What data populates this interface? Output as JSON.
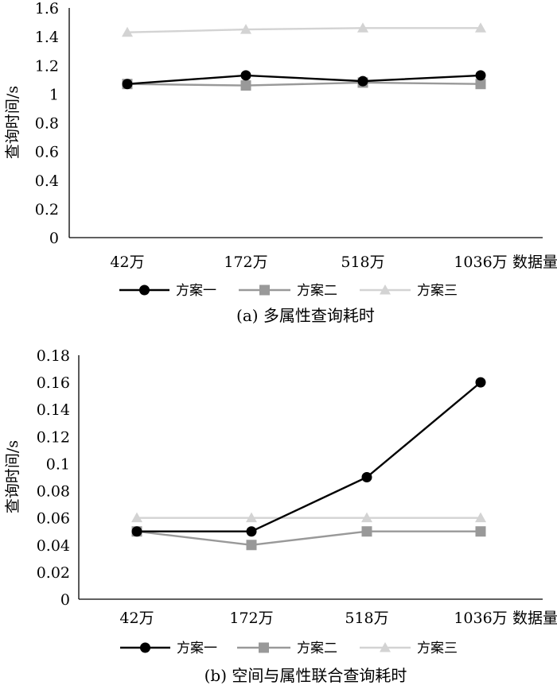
{
  "colors": {
    "series_1": "#000000",
    "series_2": "#999999",
    "series_3": "#d3d3d3",
    "axis": "#000000"
  },
  "chart_data": [
    {
      "type": "line",
      "caption": "(a) 多属性查询耗时",
      "xlabel": "数据量",
      "ylabel": "查询时间/s",
      "categories": [
        "42万",
        "172万",
        "518万",
        "1036万"
      ],
      "ylim": [
        0,
        1.6
      ],
      "yticks": [
        "0",
        "0.2",
        "0.4",
        "0.6",
        "0.8",
        "1",
        "1.2",
        "1.4",
        "1.6"
      ],
      "grid": false,
      "legend_position": "bottom",
      "series": [
        {
          "name": "方案一",
          "marker": "circle",
          "values": [
            1.07,
            1.13,
            1.09,
            1.13
          ]
        },
        {
          "name": "方案二",
          "marker": "square",
          "values": [
            1.07,
            1.06,
            1.08,
            1.07
          ]
        },
        {
          "name": "方案三",
          "marker": "triangle",
          "values": [
            1.43,
            1.45,
            1.46,
            1.46
          ]
        }
      ]
    },
    {
      "type": "line",
      "caption": "(b) 空间与属性联合查询耗时",
      "xlabel": "数据量",
      "ylabel": "查询时间/s",
      "categories": [
        "42万",
        "172万",
        "518万",
        "1036万"
      ],
      "ylim": [
        0,
        0.18
      ],
      "yticks": [
        "0",
        "0.02",
        "0.04",
        "0.06",
        "0.08",
        "0.1",
        "0.12",
        "0.14",
        "0.16",
        "0.18"
      ],
      "grid": false,
      "legend_position": "bottom",
      "series": [
        {
          "name": "方案一",
          "marker": "circle",
          "values": [
            0.05,
            0.05,
            0.09,
            0.16
          ]
        },
        {
          "name": "方案二",
          "marker": "square",
          "values": [
            0.05,
            0.04,
            0.05,
            0.05
          ]
        },
        {
          "name": "方案三",
          "marker": "triangle",
          "values": [
            0.06,
            0.06,
            0.06,
            0.06
          ]
        }
      ]
    }
  ]
}
